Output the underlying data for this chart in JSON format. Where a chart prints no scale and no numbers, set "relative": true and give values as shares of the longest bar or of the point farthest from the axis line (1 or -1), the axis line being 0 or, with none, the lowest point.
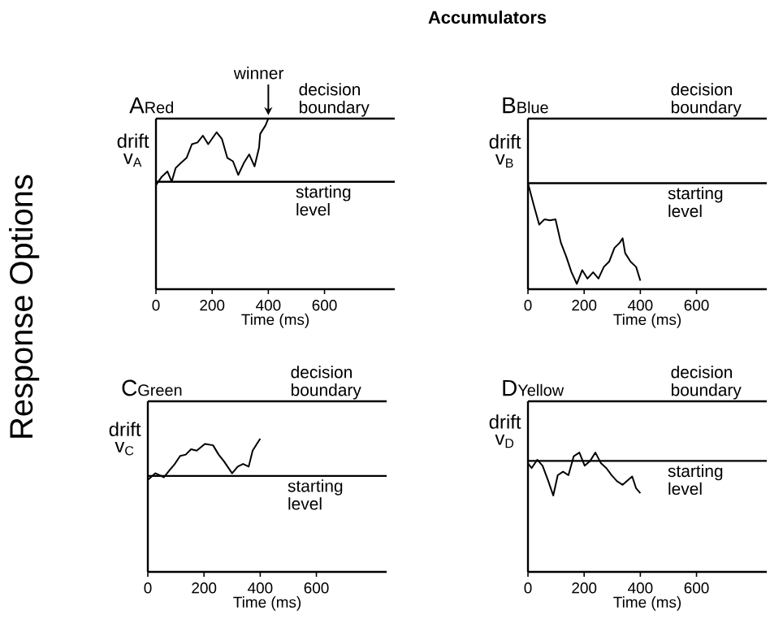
{
  "chart_data": [
    {
      "type": "line",
      "title": "A",
      "subtitle": "Red",
      "xlabel": "Time (ms)",
      "ylabel": "drift v$_{A}$",
      "relative": true,
      "grid": false,
      "annotations": [
        "Accumulators",
        "Response Options",
        {
          "text": "winner",
          "x": 400,
          "y": 1.0
        }
      ],
      "xlim": [
        0,
        850
      ],
      "xticks": [
        0,
        200,
        400,
        600
      ],
      "ref_lines": [
        {
          "axis": "y",
          "value": 1.0,
          "label": "decision boundary"
        },
        {
          "axis": "y",
          "value": 0.63,
          "label": "starting level"
        }
      ],
      "series": [
        {
          "color": "#000000",
          "x": [
            0,
            21,
            41,
            56,
            70,
            89,
            109,
            128,
            148,
            167,
            186,
            216,
            235,
            254,
            274,
            293,
            313,
            332,
            351,
            367,
            371,
            390,
            400
          ],
          "values": [
            0.61,
            0.66,
            0.69,
            0.63,
            0.71,
            0.74,
            0.77,
            0.85,
            0.86,
            0.9,
            0.85,
            0.92,
            0.88,
            0.77,
            0.75,
            0.67,
            0.74,
            0.79,
            0.72,
            0.83,
            0.91,
            0.96,
            1.0
          ]
        }
      ]
    },
    {
      "type": "line",
      "title": "B",
      "subtitle": "Blue",
      "xlabel": "Time (ms)",
      "ylabel": "drift v$_{B}$",
      "relative": true,
      "grid": false,
      "xlim": [
        0,
        850
      ],
      "xticks": [
        0,
        200,
        400,
        600
      ],
      "ref_lines": [
        {
          "axis": "y",
          "value": 1.61,
          "label": "decision boundary"
        },
        {
          "axis": "y",
          "value": 1.0,
          "label": "starting level"
        }
      ],
      "series": [
        {
          "color": "#000000",
          "x": [
            0,
            21,
            40,
            59,
            78,
            98,
            117,
            136,
            155,
            174,
            193,
            212,
            232,
            251,
            270,
            289,
            308,
            327,
            337,
            346,
            365,
            385,
            400
          ],
          "values": [
            1.0,
            0.79,
            0.61,
            0.66,
            0.65,
            0.66,
            0.44,
            0.31,
            0.16,
            0.05,
            0.18,
            0.1,
            0.16,
            0.1,
            0.21,
            0.26,
            0.39,
            0.44,
            0.48,
            0.34,
            0.26,
            0.21,
            0.08
          ]
        }
      ]
    },
    {
      "type": "line",
      "title": "C",
      "subtitle": "Green",
      "xlabel": "Time (ms)",
      "ylabel": "drift v$_{C}$",
      "relative": true,
      "grid": false,
      "xlim": [
        0,
        850
      ],
      "xticks": [
        0,
        200,
        400,
        600
      ],
      "ref_lines": [
        {
          "axis": "y",
          "value": 1.28,
          "label": "decision boundary"
        },
        {
          "axis": "y",
          "value": 0.72,
          "label": "starting level"
        }
      ],
      "series": [
        {
          "color": "#000000",
          "x": [
            0,
            27,
            57,
            76,
            96,
            115,
            135,
            154,
            174,
            203,
            232,
            252,
            271,
            300,
            320,
            339,
            359,
            373,
            388,
            400
          ],
          "values": [
            0.69,
            0.74,
            0.71,
            0.76,
            0.81,
            0.87,
            0.88,
            0.92,
            0.91,
            0.96,
            0.95,
            0.88,
            0.83,
            0.74,
            0.79,
            0.81,
            0.79,
            0.91,
            0.96,
            1.0
          ]
        }
      ]
    },
    {
      "type": "line",
      "title": "D",
      "subtitle": "Yellow",
      "xlabel": "Time (ms)",
      "ylabel": "drift v$_{D}$",
      "relative": true,
      "grid": false,
      "xlim": [
        0,
        850
      ],
      "xticks": [
        0,
        200,
        400,
        600
      ],
      "ref_lines": [
        {
          "axis": "y",
          "value": 1.43,
          "label": "decision boundary"
        },
        {
          "axis": "y",
          "value": 0.93,
          "label": "starting level"
        }
      ],
      "series": [
        {
          "color": "#000000",
          "x": [
            0,
            13,
            33,
            52,
            71,
            90,
            106,
            125,
            144,
            163,
            183,
            202,
            221,
            240,
            260,
            279,
            298,
            317,
            337,
            356,
            371,
            385,
            400
          ],
          "values": [
            0.91,
            0.87,
            0.94,
            0.89,
            0.77,
            0.64,
            0.81,
            0.84,
            0.81,
            0.97,
            1.0,
            0.89,
            0.93,
            1.0,
            0.91,
            0.87,
            0.81,
            0.76,
            0.73,
            0.77,
            0.8,
            0.7,
            0.66
          ]
        }
      ]
    }
  ]
}
